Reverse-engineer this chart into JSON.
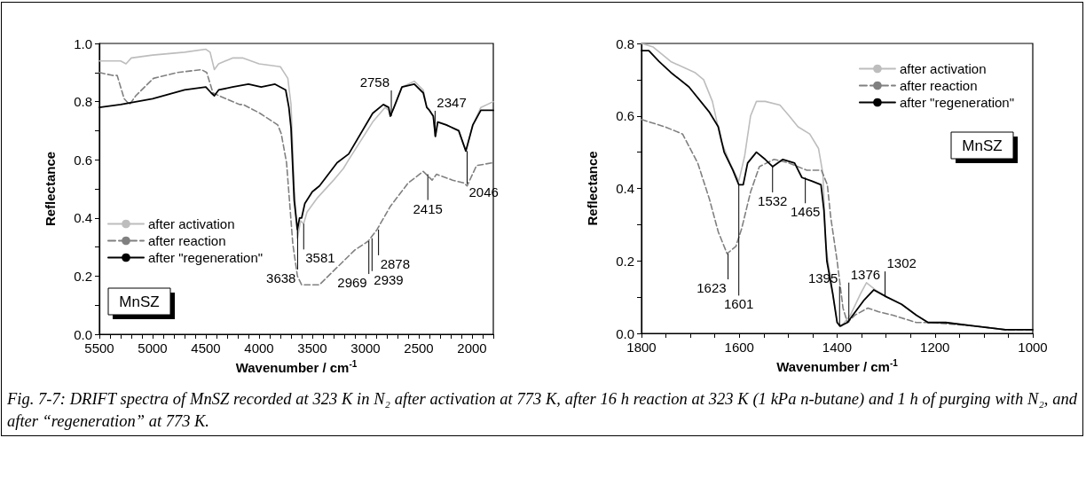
{
  "chart_data": [
    {
      "type": "line",
      "xlabel": "Wavenumber / cm$^{-1}$",
      "ylabel": "Reflectance",
      "xlim": [
        5500,
        1800
      ],
      "ylim": [
        0,
        1
      ],
      "marker": "none",
      "legend": "bottom left",
      "xticks": [
        5500,
        {
          "value": 5400,
          "label": null
        },
        {
          "value": 5300,
          "label": null
        },
        {
          "value": 5200,
          "label": null
        },
        {
          "value": 5100,
          "label": null
        },
        5000,
        {
          "value": 4900,
          "label": null
        },
        {
          "value": 4800,
          "label": null
        },
        {
          "value": 4700,
          "label": null
        },
        {
          "value": 4600,
          "label": null
        },
        4500,
        {
          "value": 4400,
          "label": null
        },
        {
          "value": 4300,
          "label": null
        },
        {
          "value": 4200,
          "label": null
        },
        {
          "value": 4100,
          "label": null
        },
        4000,
        {
          "value": 3900,
          "label": null
        },
        {
          "value": 3800,
          "label": null
        },
        {
          "value": 3700,
          "label": null
        },
        {
          "value": 3600,
          "label": null
        },
        3500,
        {
          "value": 3400,
          "label": null
        },
        {
          "value": 3300,
          "label": null
        },
        {
          "value": 3200,
          "label": null
        },
        {
          "value": 3100,
          "label": null
        },
        3000,
        {
          "value": 2900,
          "label": null
        },
        {
          "value": 2800,
          "label": null
        },
        {
          "value": 2700,
          "label": null
        },
        {
          "value": 2600,
          "label": null
        },
        2500,
        {
          "value": 2400,
          "label": null
        },
        {
          "value": 2300,
          "label": null
        },
        {
          "value": 2200,
          "label": null
        },
        {
          "value": 2100,
          "label": null
        },
        2000,
        {
          "value": 1900,
          "label": null
        },
        {
          "value": 1800,
          "label": null
        }
      ],
      "yticks": [
        {
          "value": 0,
          "label": "0.0"
        },
        {
          "value": 0.1,
          "label": null
        },
        {
          "value": 0.2,
          "label": "0.2"
        },
        {
          "value": 0.3,
          "label": null
        },
        {
          "value": 0.4,
          "label": "0.4"
        },
        {
          "value": 0.5,
          "label": null
        },
        {
          "value": 0.6,
          "label": "0.6"
        },
        {
          "value": 0.7,
          "label": null
        },
        {
          "value": 0.8,
          "label": "0.8"
        },
        {
          "value": 0.9,
          "label": null
        },
        {
          "value": 1,
          "label": "1.0"
        }
      ],
      "series": [
        {
          "name": "after activation",
          "color": "#bdbdbd",
          "line_style": "solid",
          "x": [
            5500,
            5300,
            5250,
            5200,
            5000,
            4700,
            4500,
            4460,
            4420,
            4380,
            4250,
            4150,
            4000,
            3800,
            3730,
            3700,
            3670,
            3640,
            3610,
            3581,
            3550,
            3450,
            3300,
            3208,
            3158,
            2933,
            2817,
            2783,
            2767,
            2733,
            2658,
            2542,
            2458,
            2425,
            2400,
            2364,
            2344,
            2322,
            2242,
            2125,
            2058,
            1992,
            1917,
            1800
          ],
          "values": [
            0.94,
            0.94,
            0.93,
            0.95,
            0.96,
            0.97,
            0.98,
            0.97,
            0.91,
            0.93,
            0.95,
            0.95,
            0.93,
            0.92,
            0.88,
            0.79,
            0.51,
            0.33,
            0.39,
            0.38,
            0.42,
            0.47,
            0.53,
            0.57,
            0.6,
            0.73,
            0.78,
            0.77,
            0.75,
            0.78,
            0.85,
            0.87,
            0.84,
            0.78,
            0.77,
            0.75,
            0.68,
            0.73,
            0.72,
            0.7,
            0.63,
            0.72,
            0.78,
            0.8
          ]
        },
        {
          "name": "after reaction",
          "color": "#808080",
          "line_style": "dashed",
          "x": [
            5500,
            5375,
            5333,
            5292,
            5267,
            5217,
            5158,
            4992,
            4767,
            4542,
            4492,
            4433,
            4375,
            4183,
            4150,
            3992,
            3825,
            3792,
            3742,
            3683,
            3640,
            3600,
            3550,
            3480,
            3433,
            3267,
            3100,
            2975,
            2892,
            2767,
            2600,
            2458,
            2375,
            2333,
            2183,
            2075,
            2046,
            1958,
            1800
          ],
          "values": [
            0.9,
            0.89,
            0.89,
            0.84,
            0.81,
            0.79,
            0.82,
            0.88,
            0.9,
            0.91,
            0.9,
            0.83,
            0.82,
            0.79,
            0.79,
            0.76,
            0.72,
            0.69,
            0.59,
            0.31,
            0.2,
            0.17,
            0.17,
            0.17,
            0.17,
            0.23,
            0.29,
            0.32,
            0.36,
            0.44,
            0.52,
            0.56,
            0.53,
            0.55,
            0.53,
            0.52,
            0.51,
            0.58,
            0.59
          ]
        },
        {
          "name": "after \"regeneration\"",
          "color": "#000000",
          "line_style": "solid",
          "x": [
            5500,
            5300,
            5000,
            4700,
            4500,
            4450,
            4420,
            4380,
            4250,
            4100,
            3980,
            3850,
            3750,
            3720,
            3700,
            3670,
            3640,
            3620,
            3600,
            3570,
            3500,
            3433,
            3267,
            3158,
            2933,
            2833,
            2783,
            2767,
            2733,
            2658,
            2542,
            2458,
            2425,
            2400,
            2364,
            2344,
            2322,
            2242,
            2125,
            2058,
            1992,
            1917,
            1800
          ],
          "values": [
            0.78,
            0.79,
            0.81,
            0.84,
            0.85,
            0.83,
            0.82,
            0.84,
            0.85,
            0.86,
            0.85,
            0.86,
            0.84,
            0.78,
            0.71,
            0.46,
            0.36,
            0.4,
            0.4,
            0.45,
            0.49,
            0.51,
            0.59,
            0.62,
            0.76,
            0.79,
            0.78,
            0.75,
            0.78,
            0.85,
            0.86,
            0.83,
            0.78,
            0.77,
            0.75,
            0.68,
            0.73,
            0.72,
            0.7,
            0.63,
            0.72,
            0.77,
            0.77
          ]
        }
      ],
      "annotations": [
        "MnSZ",
        {
          "text": "3638",
          "x": 3638,
          "y": 0.36
        },
        {
          "text": "3581",
          "x": 3581,
          "y": 0.38
        },
        {
          "text": "2878",
          "x": 2878,
          "y": 0.36
        },
        {
          "text": "2939",
          "x": 2939,
          "y": 0.33
        },
        {
          "text": "2969",
          "x": 2969,
          "y": 0.32
        },
        {
          "text": "2758",
          "x": 2758,
          "y": 0.75
        },
        {
          "text": "2415",
          "x": 2415,
          "y": 0.55
        },
        {
          "text": "2347",
          "x": 2347,
          "y": 0.68
        },
        {
          "text": "2046",
          "x": 2046,
          "y": 0.63
        }
      ]
    },
    {
      "type": "line",
      "xlabel": "Wavenumber / cm$^{-1}$",
      "ylabel": "Reflectance",
      "xlim": [
        1800,
        1000
      ],
      "ylim": [
        0,
        0.8
      ],
      "marker": "none",
      "legend": "top right",
      "xticks": [
        1800,
        {
          "value": 1750,
          "label": null
        },
        {
          "value": 1700,
          "label": null
        },
        {
          "value": 1650,
          "label": null
        },
        1600,
        {
          "value": 1550,
          "label": null
        },
        {
          "value": 1500,
          "label": null
        },
        {
          "value": 1450,
          "label": null
        },
        1400,
        {
          "value": 1350,
          "label": null
        },
        {
          "value": 1300,
          "label": null
        },
        {
          "value": 1250,
          "label": null
        },
        1200,
        {
          "value": 1150,
          "label": null
        },
        {
          "value": 1100,
          "label": null
        },
        {
          "value": 1050,
          "label": null
        },
        1000
      ],
      "yticks": [
        {
          "value": 0,
          "label": "0.0"
        },
        {
          "value": 0.1,
          "label": null
        },
        {
          "value": 0.2,
          "label": "0.2"
        },
        {
          "value": 0.3,
          "label": null
        },
        {
          "value": 0.4,
          "label": "0.4"
        },
        {
          "value": 0.5,
          "label": null
        },
        {
          "value": 0.6,
          "label": "0.6"
        },
        {
          "value": 0.7,
          "label": null
        },
        {
          "value": 0.8,
          "label": "0.8"
        }
      ],
      "series": [
        {
          "name": "after activation",
          "color": "#bdbdbd",
          "line_style": "solid",
          "x": [
            1800,
            1776,
            1740,
            1691,
            1673,
            1655,
            1637,
            1619,
            1601,
            1589,
            1577,
            1565,
            1547,
            1517,
            1498,
            1480,
            1456,
            1438,
            1429,
            1423,
            1410,
            1400,
            1391,
            1373,
            1352,
            1340,
            1322,
            1298,
            1268,
            1238,
            1214,
            1178,
            1117,
            1056
          ],
          "values": [
            0.8,
            0.79,
            0.75,
            0.72,
            0.7,
            0.64,
            0.53,
            0.47,
            0.42,
            0.49,
            0.6,
            0.64,
            0.64,
            0.63,
            0.6,
            0.57,
            0.55,
            0.51,
            0.44,
            0.24,
            0.12,
            0.03,
            0.02,
            0.05,
            0.11,
            0.14,
            0.12,
            0.1,
            0.08,
            0.05,
            0.03,
            0.03,
            0.02,
            0.01
          ]
        },
        {
          "name": "after reaction",
          "color": "#808080",
          "line_style": "dashed",
          "x": [
            1800,
            1752,
            1716,
            1685,
            1661,
            1643,
            1625,
            1607,
            1595,
            1577,
            1559,
            1529,
            1498,
            1462,
            1432,
            1420,
            1413,
            1400,
            1388,
            1379,
            1364,
            1337,
            1316,
            1286,
            1238,
            1207,
            1117,
            1056,
            1000
          ],
          "values": [
            0.59,
            0.57,
            0.55,
            0.47,
            0.37,
            0.28,
            0.22,
            0.24,
            0.29,
            0.39,
            0.46,
            0.48,
            0.47,
            0.45,
            0.45,
            0.41,
            0.32,
            0.2,
            0.07,
            0.03,
            0.05,
            0.07,
            0.06,
            0.05,
            0.03,
            0.03,
            0.02,
            0.01,
            0.01
          ]
        },
        {
          "name": "after \"regeneration\"",
          "color": "#000000",
          "line_style": "solid",
          "x": [
            1800,
            1785,
            1764,
            1740,
            1703,
            1661,
            1643,
            1631,
            1613,
            1601,
            1592,
            1583,
            1565,
            1547,
            1532,
            1511,
            1487,
            1472,
            1451,
            1433,
            1427,
            1421,
            1409,
            1400,
            1394,
            1379,
            1346,
            1325,
            1298,
            1268,
            1238,
            1214,
            1178,
            1117,
            1056,
            1000
          ],
          "values": [
            0.78,
            0.78,
            0.75,
            0.72,
            0.68,
            0.61,
            0.57,
            0.5,
            0.45,
            0.41,
            0.41,
            0.47,
            0.5,
            0.48,
            0.46,
            0.48,
            0.47,
            0.43,
            0.42,
            0.41,
            0.34,
            0.2,
            0.11,
            0.03,
            0.02,
            0.03,
            0.09,
            0.12,
            0.1,
            0.08,
            0.05,
            0.03,
            0.03,
            0.02,
            0.01,
            0.01
          ]
        }
      ],
      "annotations": [
        "MnSZ",
        {
          "text": "1623",
          "x": 1623,
          "y": 0.22
        },
        {
          "text": "1601",
          "x": 1601,
          "y": 0.41
        },
        {
          "text": "1532",
          "x": 1532,
          "y": 0.46
        },
        {
          "text": "1465",
          "x": 1465,
          "y": 0.43
        },
        {
          "text": "1376",
          "x": 1376,
          "y": 0.03
        },
        {
          "text": "1395",
          "x": 1395,
          "y": 0.02
        },
        {
          "text": "1302",
          "x": 1302,
          "y": 0.1
        }
      ]
    },
    {
      "type": "other",
      "annotations": [
        "Fig. 7-7: DRIFT spectra of MnSZ recorded at 323 K in N₂ after activation at 773 K, after 16 h reaction at 323 K (1 kPa n-butane) and 1 h of purging with N₂, and after “regeneration” at 773 K."
      ]
    }
  ]
}
